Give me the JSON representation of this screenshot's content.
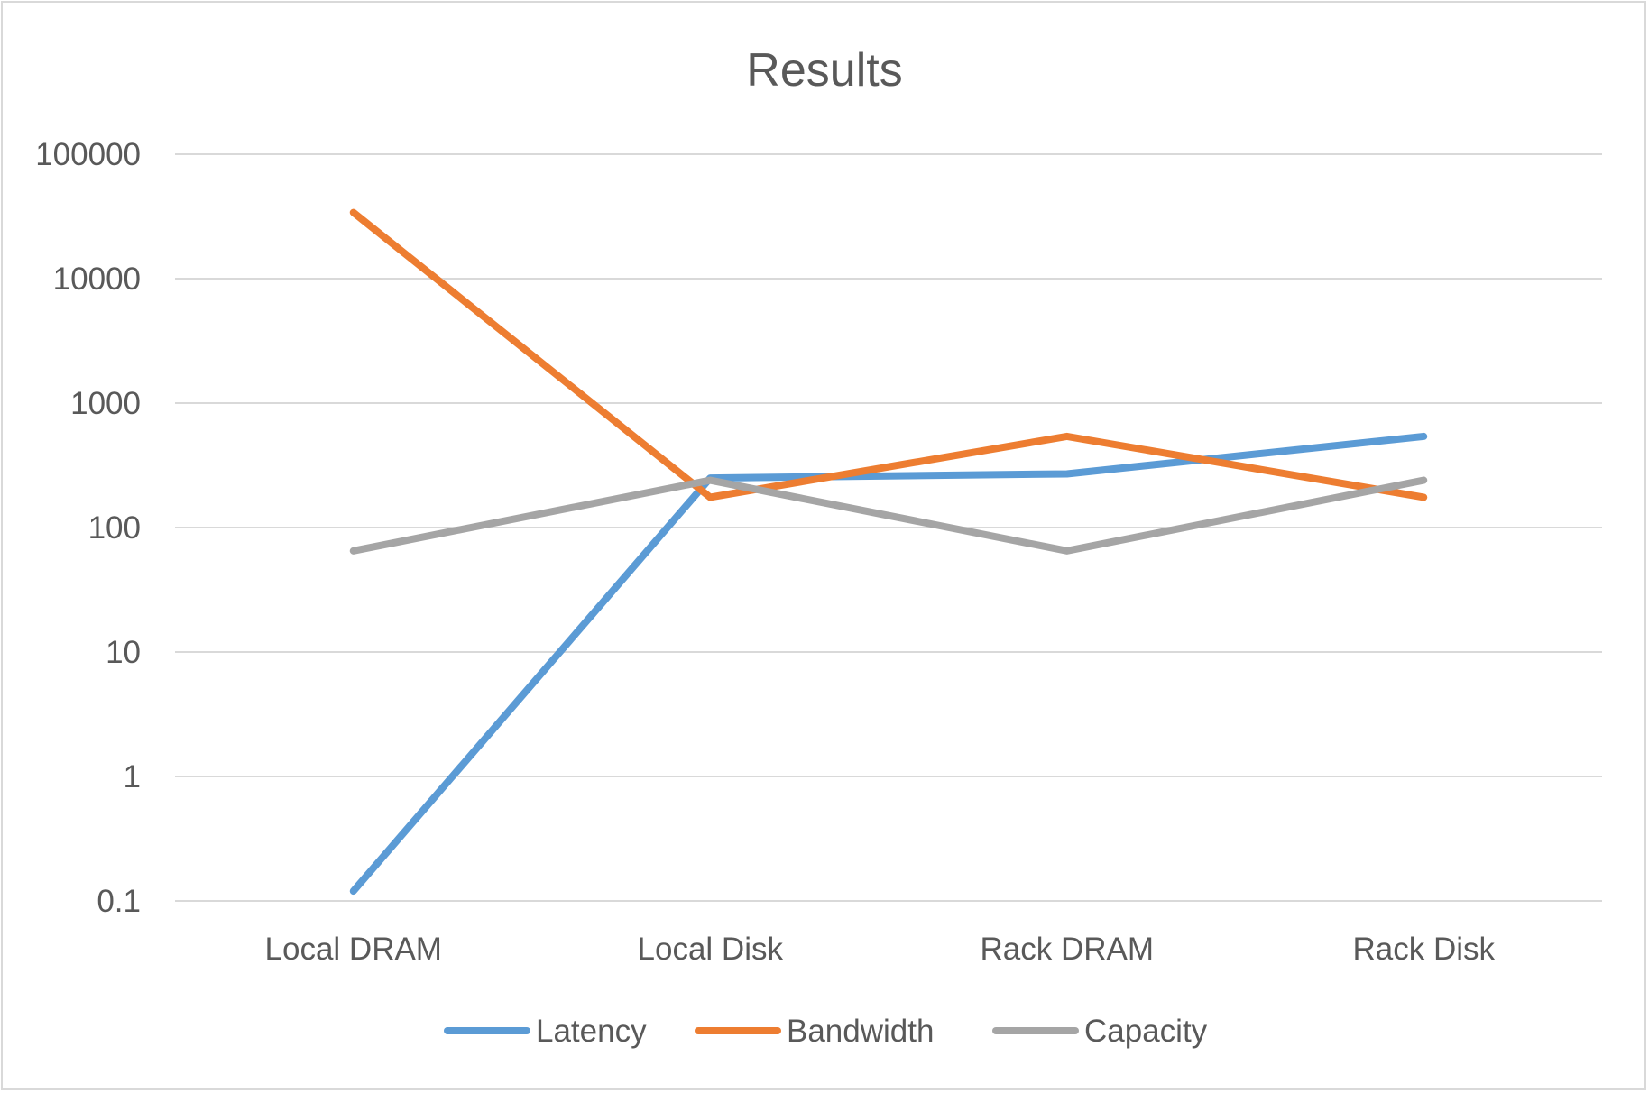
{
  "chart_data": {
    "type": "line",
    "title": "Results",
    "categories": [
      "Local DRAM",
      "Local Disk",
      "Rack DRAM",
      "Rack Disk"
    ],
    "y_scale": "log",
    "ylim": [
      0.1,
      100000
    ],
    "y_ticks": [
      "0.1",
      "1",
      "10",
      "100",
      "1000",
      "10000",
      "100000"
    ],
    "grid": true,
    "legend_position": "bottom",
    "series": [
      {
        "name": "Latency",
        "color": "#5b9bd5",
        "values": [
          0.12,
          250,
          270,
          540
        ]
      },
      {
        "name": "Bandwidth",
        "color": "#ed7d31",
        "values": [
          34000,
          175,
          540,
          175
        ]
      },
      {
        "name": "Capacity",
        "color": "#a5a5a5",
        "values": [
          65,
          240,
          65,
          240
        ]
      }
    ]
  }
}
